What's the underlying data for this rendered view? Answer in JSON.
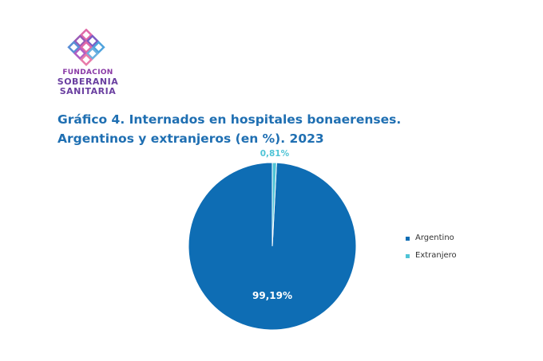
{
  "logo": {
    "line1": "FUNDACION",
    "line2": "SOBERANIA",
    "line3": "SANITARIA"
  },
  "title": "Gráfico 4. Internados en hospitales bonaerenses. Argentinos y extranjeros (en %). 2023",
  "colors": {
    "argentino": "#0e6db4",
    "extranjero": "#4fc4d6",
    "title": "#1f6fb2"
  },
  "chart_data": {
    "type": "pie",
    "title": "Gráfico 4. Internados en hospitales bonaerenses. Argentinos y extranjeros (en %). 2023",
    "categories": [
      "Argentino",
      "Extranjero"
    ],
    "values": [
      99.19,
      0.81
    ],
    "labels": [
      "99,19%",
      "0,81%"
    ],
    "legend_position": "right"
  }
}
